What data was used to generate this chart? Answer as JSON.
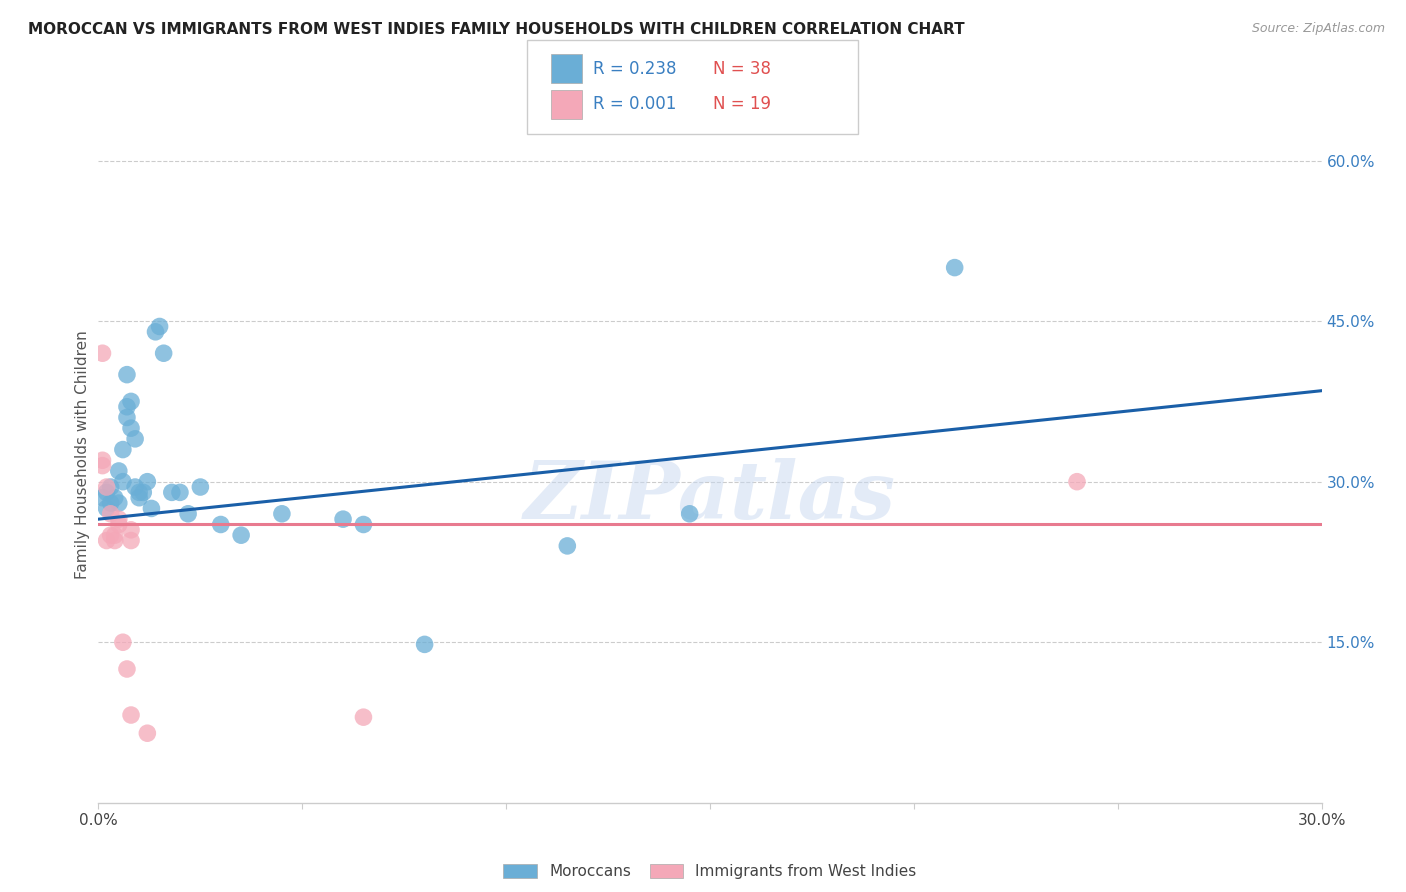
{
  "title": "MOROCCAN VS IMMIGRANTS FROM WEST INDIES FAMILY HOUSEHOLDS WITH CHILDREN CORRELATION CHART",
  "source": "Source: ZipAtlas.com",
  "ylabel": "Family Households with Children",
  "watermark": "ZIPatlas",
  "xlim": [
    0.0,
    0.3
  ],
  "ylim": [
    0.0,
    0.65
  ],
  "x_ticks": [
    0.0,
    0.05,
    0.1,
    0.15,
    0.2,
    0.25,
    0.3
  ],
  "x_tick_labels": [
    "0.0%",
    "",
    "",
    "",
    "",
    "",
    "30.0%"
  ],
  "y_ticks_right": [
    0.15,
    0.3,
    0.45,
    0.6
  ],
  "y_tick_labels_right": [
    "15.0%",
    "30.0%",
    "45.0%",
    "60.0%"
  ],
  "blue_R": "0.238",
  "blue_N": "38",
  "pink_R": "0.001",
  "pink_N": "19",
  "blue_color": "#6aaed6",
  "pink_color": "#f4a8b8",
  "blue_line_color": "#1a5fa8",
  "pink_line_color": "#e87a8f",
  "blue_scatter": [
    [
      0.001,
      0.285
    ],
    [
      0.002,
      0.29
    ],
    [
      0.002,
      0.275
    ],
    [
      0.003,
      0.28
    ],
    [
      0.003,
      0.295
    ],
    [
      0.004,
      0.285
    ],
    [
      0.005,
      0.28
    ],
    [
      0.005,
      0.31
    ],
    [
      0.006,
      0.3
    ],
    [
      0.006,
      0.33
    ],
    [
      0.007,
      0.37
    ],
    [
      0.007,
      0.36
    ],
    [
      0.007,
      0.4
    ],
    [
      0.008,
      0.375
    ],
    [
      0.008,
      0.35
    ],
    [
      0.009,
      0.34
    ],
    [
      0.009,
      0.295
    ],
    [
      0.01,
      0.29
    ],
    [
      0.01,
      0.285
    ],
    [
      0.011,
      0.29
    ],
    [
      0.012,
      0.3
    ],
    [
      0.013,
      0.275
    ],
    [
      0.014,
      0.44
    ],
    [
      0.015,
      0.445
    ],
    [
      0.016,
      0.42
    ],
    [
      0.018,
      0.29
    ],
    [
      0.02,
      0.29
    ],
    [
      0.022,
      0.27
    ],
    [
      0.025,
      0.295
    ],
    [
      0.03,
      0.26
    ],
    [
      0.035,
      0.25
    ],
    [
      0.045,
      0.27
    ],
    [
      0.06,
      0.265
    ],
    [
      0.065,
      0.26
    ],
    [
      0.08,
      0.148
    ],
    [
      0.115,
      0.24
    ],
    [
      0.145,
      0.27
    ],
    [
      0.21,
      0.5
    ]
  ],
  "pink_scatter": [
    [
      0.001,
      0.42
    ],
    [
      0.001,
      0.32
    ],
    [
      0.001,
      0.315
    ],
    [
      0.002,
      0.295
    ],
    [
      0.002,
      0.245
    ],
    [
      0.003,
      0.27
    ],
    [
      0.003,
      0.25
    ],
    [
      0.004,
      0.245
    ],
    [
      0.004,
      0.25
    ],
    [
      0.005,
      0.265
    ],
    [
      0.005,
      0.26
    ],
    [
      0.006,
      0.15
    ],
    [
      0.007,
      0.125
    ],
    [
      0.008,
      0.255
    ],
    [
      0.008,
      0.245
    ],
    [
      0.008,
      0.082
    ],
    [
      0.012,
      0.065
    ],
    [
      0.065,
      0.08
    ],
    [
      0.24,
      0.3
    ]
  ],
  "blue_trendline": [
    [
      0.0,
      0.265
    ],
    [
      0.3,
      0.385
    ]
  ],
  "pink_trendline": [
    [
      0.0,
      0.26
    ],
    [
      0.3,
      0.26
    ]
  ],
  "background_color": "#ffffff",
  "grid_color": "#cccccc"
}
